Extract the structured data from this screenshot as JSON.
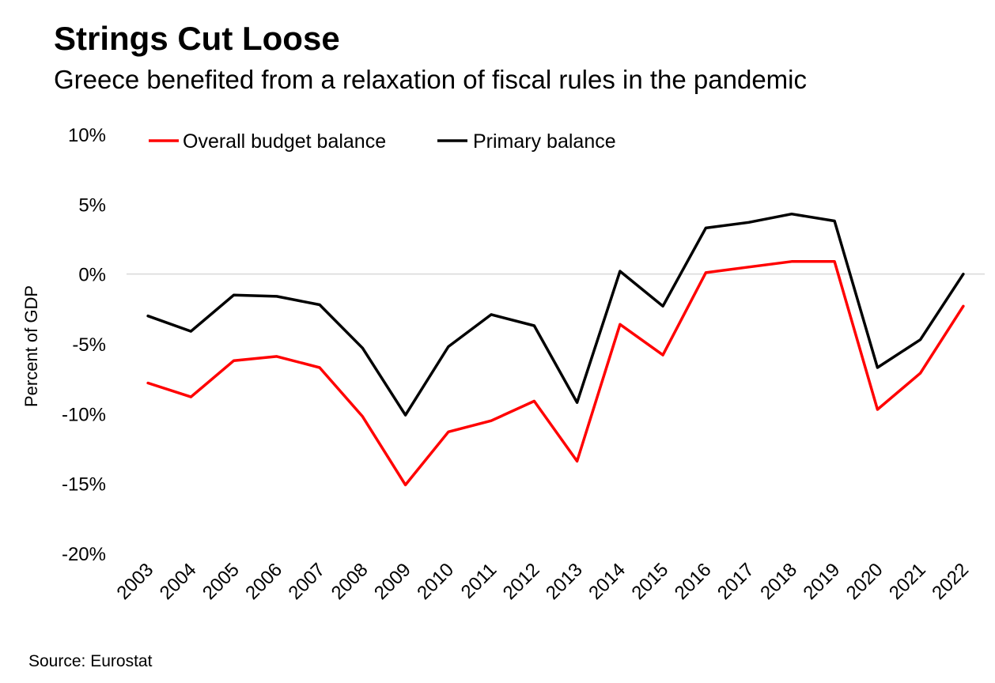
{
  "header": {
    "title": "Strings Cut Loose",
    "subtitle": "Greece benefited from a relaxation of fiscal rules in the pandemic"
  },
  "footer": {
    "source": "Source: Eurostat"
  },
  "colors": {
    "overall": "#ff0000",
    "primary": "#000000",
    "zero_line": "#d9d9d9"
  },
  "chart_data": {
    "type": "line",
    "title": "Strings Cut Loose",
    "subtitle": "Greece benefited from a relaxation of fiscal rules in the pandemic",
    "xlabel": "",
    "ylabel": "Percent of GDP",
    "ylim": [
      -20,
      10
    ],
    "yticks": [
      10,
      5,
      0,
      -5,
      -10,
      -15,
      -20
    ],
    "ytick_labels": [
      "10%",
      "5%",
      "0%",
      "-5%",
      "-10%",
      "-15%",
      "-20%"
    ],
    "grid": false,
    "legend_position": "top-left",
    "x": [
      "2003",
      "2004",
      "2005",
      "2006",
      "2007",
      "2008",
      "2009",
      "2010",
      "2011",
      "2012",
      "2013",
      "2014",
      "2015",
      "2016",
      "2017",
      "2018",
      "2019",
      "2020",
      "2021",
      "2022"
    ],
    "series": [
      {
        "name": "Overall budget balance",
        "color": "#ff0000",
        "values": [
          -7.8,
          -8.8,
          -6.2,
          -5.9,
          -6.7,
          -10.2,
          -15.1,
          -11.3,
          -10.5,
          -9.1,
          -13.4,
          -3.6,
          -5.8,
          0.1,
          0.5,
          0.9,
          0.9,
          -9.7,
          -7.1,
          -2.3
        ]
      },
      {
        "name": "Primary balance",
        "color": "#000000",
        "values": [
          -3.0,
          -4.1,
          -1.5,
          -1.6,
          -2.2,
          -5.3,
          -10.1,
          -5.2,
          -2.9,
          -3.7,
          -9.2,
          0.2,
          -2.3,
          3.3,
          3.7,
          4.3,
          3.8,
          -6.7,
          -4.7,
          0.0
        ]
      }
    ]
  }
}
